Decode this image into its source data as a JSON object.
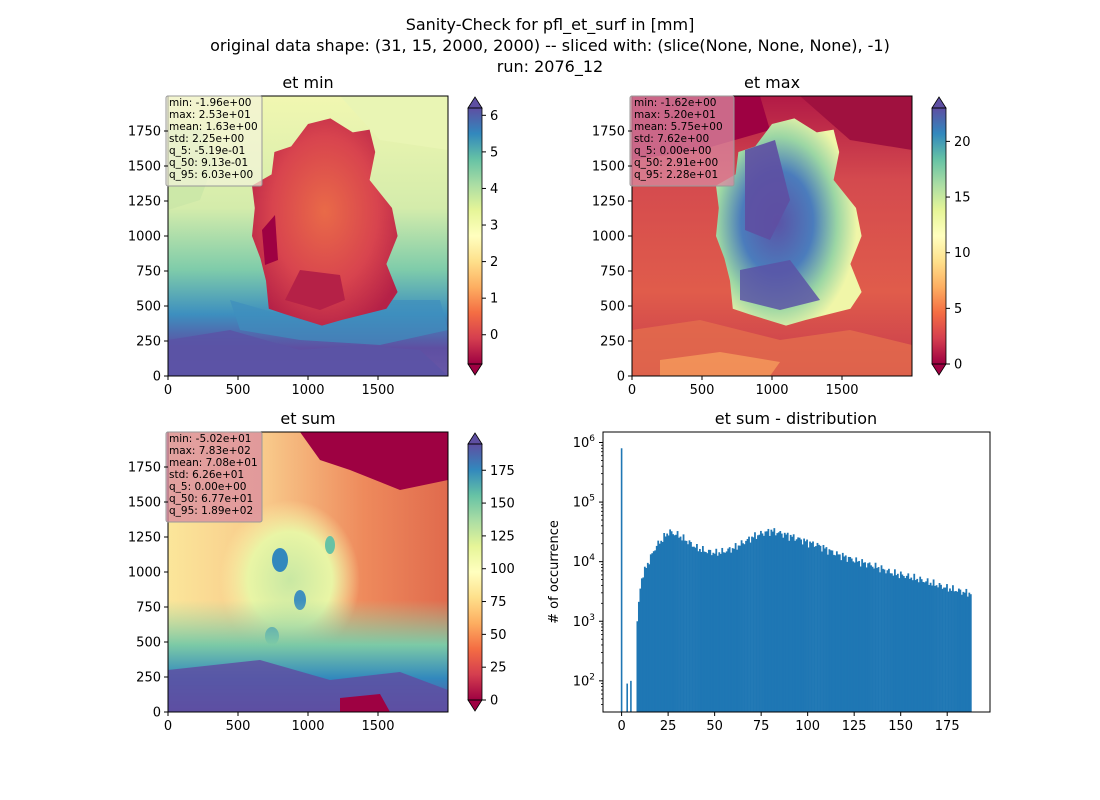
{
  "figure": {
    "suptitle": [
      "Sanity-Check for pfl_et_surf in [mm]",
      "original data shape: (31, 15, 2000, 2000) -- sliced with: (slice(None, None, None), -1)",
      "run: 2076_12"
    ]
  },
  "chart_data": [
    {
      "type": "heatmap",
      "title": "et min",
      "colormap": "Spectral",
      "xlim": [
        0,
        2000
      ],
      "ylim": [
        0,
        2000
      ],
      "xticks": [
        0,
        500,
        1000,
        1500
      ],
      "yticks": [
        0,
        250,
        500,
        750,
        1000,
        1250,
        1500,
        1750
      ],
      "clim": [
        -0.8,
        6.2
      ],
      "cbar_ticks": [
        0,
        1,
        2,
        3,
        4,
        5,
        6
      ],
      "stats_box_color": "#f3f3dc",
      "stats": [
        "min: -1.96e+00",
        "max: 2.53e+01",
        "mean: 1.63e+00",
        "std: 2.25e+00",
        "q_5: -5.19e-01",
        "q_50: 9.13e-01",
        "q_95: 6.03e+00"
      ]
    },
    {
      "type": "heatmap",
      "title": "et max",
      "colormap": "Spectral",
      "xlim": [
        0,
        2000
      ],
      "ylim": [
        0,
        2000
      ],
      "xticks": [
        0,
        500,
        1000,
        1500
      ],
      "yticks": [
        0,
        250,
        500,
        750,
        1000,
        1250,
        1500,
        1750
      ],
      "clim": [
        0,
        23
      ],
      "cbar_ticks": [
        0,
        5,
        10,
        15,
        20
      ],
      "stats_box_color": "#d98aa0",
      "stats": [
        "min: -1.62e+00",
        "max: 5.20e+01",
        "mean: 5.75e+00",
        "std: 7.62e+00",
        "q_5: 0.00e+00",
        "q_50: 2.91e+00",
        "q_95: 2.28e+01"
      ]
    },
    {
      "type": "heatmap",
      "title": "et sum",
      "colormap": "Spectral",
      "xlim": [
        0,
        2000
      ],
      "ylim": [
        0,
        2000
      ],
      "xticks": [
        0,
        500,
        1000,
        1500
      ],
      "yticks": [
        0,
        250,
        500,
        750,
        1000,
        1250,
        1500,
        1750
      ],
      "clim": [
        0,
        195
      ],
      "cbar_ticks": [
        0,
        25,
        50,
        75,
        100,
        125,
        150,
        175
      ],
      "stats_box_color": "#d98aa0",
      "stats": [
        "min: -5.02e+01",
        "max: 7.83e+02",
        "mean: 7.08e+01",
        "std: 6.26e+01",
        "q_5: 0.00e+00",
        "q_50: 6.77e+01",
        "q_95: 1.89e+02"
      ]
    },
    {
      "type": "bar",
      "title": "et sum - distribution",
      "ylabel": "# of occurrence",
      "yscale": "log",
      "xlim": [
        -10,
        198
      ],
      "ylim": [
        30,
        1500000
      ],
      "xticks": [
        0,
        25,
        50,
        75,
        100,
        125,
        150,
        175
      ],
      "yticks": [
        100,
        1000,
        10000,
        100000,
        1000000
      ],
      "bar_color": "#1f77b4",
      "spikes": [
        {
          "x": 0,
          "value": 800000
        },
        {
          "x": 3,
          "value": 90
        },
        {
          "x": 5,
          "value": 100
        }
      ],
      "profile": [
        [
          8,
          1000
        ],
        [
          10,
          5000
        ],
        [
          14,
          10000
        ],
        [
          18,
          18000
        ],
        [
          22,
          25000
        ],
        [
          25,
          32000
        ],
        [
          30,
          28000
        ],
        [
          35,
          22000
        ],
        [
          40,
          17000
        ],
        [
          45,
          15000
        ],
        [
          50,
          14000
        ],
        [
          55,
          15000
        ],
        [
          60,
          17000
        ],
        [
          65,
          21000
        ],
        [
          70,
          26000
        ],
        [
          75,
          30000
        ],
        [
          80,
          33000
        ],
        [
          85,
          30000
        ],
        [
          90,
          27000
        ],
        [
          95,
          24000
        ],
        [
          100,
          21000
        ],
        [
          105,
          19000
        ],
        [
          110,
          16000
        ],
        [
          115,
          13500
        ],
        [
          120,
          12000
        ],
        [
          125,
          10500
        ],
        [
          130,
          9500
        ],
        [
          135,
          8500
        ],
        [
          140,
          7500
        ],
        [
          145,
          6500
        ],
        [
          150,
          6000
        ],
        [
          155,
          5500
        ],
        [
          160,
          5000
        ],
        [
          165,
          4500
        ],
        [
          170,
          4000
        ],
        [
          175,
          3600
        ],
        [
          180,
          3300
        ],
        [
          185,
          3000
        ],
        [
          188,
          3000
        ]
      ]
    }
  ]
}
